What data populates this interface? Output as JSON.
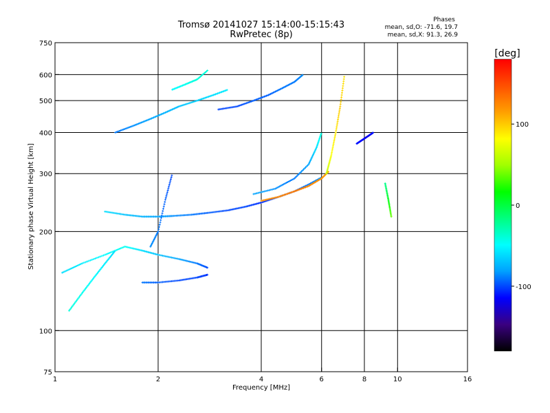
{
  "chart_data": {
    "type": "scatter",
    "title": "Tromsø 20141027  15:14:00-15:15:43",
    "subtitle": "RwPretec (8p)",
    "xlabel": "Frequency [MHz]",
    "ylabel": "Stationary phase Virtual Height [km]",
    "x_scale": "log",
    "y_scale": "log",
    "xlim": [
      1,
      16
    ],
    "ylim": [
      75,
      750
    ],
    "x_ticks": [
      1,
      2,
      4,
      6,
      8,
      10,
      16
    ],
    "x_tick_labels": [
      "1",
      "2",
      "4",
      "6",
      "8",
      "10",
      "16"
    ],
    "x_grid": [
      2,
      4,
      6,
      8,
      10
    ],
    "y_ticks": [
      75,
      100,
      200,
      300,
      400,
      500,
      600,
      750
    ],
    "y_tick_labels": [
      "75",
      "100",
      "200",
      "300",
      "400",
      "500",
      "600",
      "750"
    ],
    "y_grid": [
      100,
      200,
      300,
      400,
      500,
      600
    ],
    "grid": true,
    "phases": {
      "heading": "Phases",
      "line_o": "mean, sd,O: -71.6, 19.7",
      "line_x": "mean, sd,X:  91.3, 26.9"
    },
    "colorbar": {
      "label": "[deg]",
      "range": [
        -180,
        180
      ],
      "ticks": [
        100,
        0,
        -100
      ],
      "tick_labels": [
        "100",
        "0",
        "-100"
      ],
      "placement": "right",
      "stops": [
        "#000000",
        "#3a0080",
        "#0000ff",
        "#00a0ff",
        "#00ffff",
        "#00ff80",
        "#00ff00",
        "#a0ff00",
        "#ffff00",
        "#ffa000",
        "#ff5000",
        "#ff0000"
      ]
    },
    "traces": [
      {
        "f": [
          1.05,
          1.2,
          1.4,
          1.6,
          1.8,
          2.0,
          2.3,
          2.6,
          2.8
        ],
        "h": [
          150,
          160,
          170,
          180,
          175,
          170,
          165,
          160,
          155
        ],
        "phase": [
          -60,
          -55,
          -50,
          -45,
          -60,
          -70,
          -80,
          -90,
          -100
        ]
      },
      {
        "f": [
          1.8,
          2.0,
          2.3,
          2.6,
          2.8
        ],
        "h": [
          140,
          140,
          142,
          145,
          148
        ],
        "phase": [
          -90,
          -95,
          -100,
          -100,
          -105
        ]
      },
      {
        "f": [
          1.1,
          1.2,
          1.3,
          1.4,
          1.5
        ],
        "h": [
          115,
          130,
          145,
          160,
          175
        ],
        "phase": [
          -40,
          -45,
          -50,
          -55,
          -60
        ]
      },
      {
        "f": [
          1.4,
          1.6,
          1.8,
          2.0,
          2.2,
          2.5,
          2.8,
          3.2,
          3.6,
          4.0,
          4.5,
          5.0,
          5.5,
          6.0
        ],
        "h": [
          230,
          225,
          222,
          222,
          223,
          225,
          228,
          232,
          238,
          245,
          255,
          265,
          278,
          292
        ],
        "phase": [
          -60,
          -70,
          -75,
          -80,
          -85,
          -90,
          -95,
          -100,
          -100,
          -105,
          -100,
          -95,
          -90,
          -85
        ]
      },
      {
        "f": [
          4.0,
          4.5,
          5.0,
          5.5,
          6.0,
          6.3
        ],
        "h": [
          248,
          255,
          265,
          275,
          290,
          305
        ],
        "phase": [
          120,
          125,
          130,
          125,
          120,
          110
        ]
      },
      {
        "f": [
          1.5,
          1.7,
          1.9,
          2.1,
          2.3,
          2.6,
          2.9,
          3.2
        ],
        "h": [
          400,
          420,
          440,
          460,
          480,
          500,
          520,
          540
        ],
        "phase": [
          -90,
          -85,
          -80,
          -75,
          -70,
          -65,
          -60,
          -55
        ]
      },
      {
        "f": [
          3.0,
          3.4,
          3.8,
          4.2,
          4.6,
          5.0,
          5.3
        ],
        "h": [
          470,
          480,
          500,
          520,
          545,
          570,
          600
        ],
        "phase": [
          -100,
          -100,
          -95,
          -95,
          -90,
          -90,
          -85
        ]
      },
      {
        "f": [
          2.2,
          2.4,
          2.6,
          2.8
        ],
        "h": [
          540,
          560,
          580,
          620
        ],
        "phase": [
          -50,
          -45,
          -40,
          -40
        ]
      },
      {
        "f": [
          3.8,
          4.4,
          5.0,
          5.5,
          5.8,
          6.0
        ],
        "h": [
          260,
          270,
          290,
          320,
          360,
          400
        ],
        "phase": [
          -80,
          -85,
          -90,
          -80,
          -60,
          -40
        ]
      },
      {
        "f": [
          6.2,
          6.4,
          6.6,
          6.8,
          7.0
        ],
        "h": [
          300,
          340,
          400,
          480,
          600
        ],
        "phase": [
          60,
          80,
          90,
          100,
          90
        ]
      },
      {
        "f": [
          7.6,
          7.9,
          8.2,
          8.5
        ],
        "h": [
          370,
          380,
          390,
          400
        ],
        "phase": [
          -110,
          -115,
          -120,
          -110
        ]
      },
      {
        "f": [
          1.9,
          2.0,
          2.1,
          2.2
        ],
        "h": [
          180,
          200,
          250,
          300
        ],
        "phase": [
          -85,
          -90,
          -95,
          -100
        ]
      },
      {
        "f": [
          9.2,
          9.4,
          9.6
        ],
        "h": [
          280,
          250,
          220
        ],
        "phase": [
          -20,
          10,
          40
        ]
      }
    ]
  }
}
